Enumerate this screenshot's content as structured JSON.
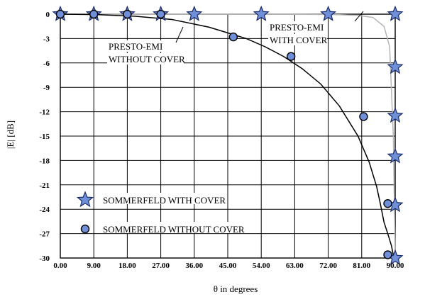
{
  "chart_data": {
    "type": "scatter",
    "title": "",
    "xlabel": "θ in degrees",
    "ylabel": "|E| [dB]",
    "xlim": [
      0,
      90
    ],
    "ylim": [
      -30,
      0
    ],
    "xticks": [
      0,
      9,
      18,
      27,
      36,
      45,
      54,
      63,
      72,
      81,
      90
    ],
    "xtick_labels": [
      "0.00",
      "9.00",
      "18.00",
      "27.00",
      "36.00",
      "45.00",
      "54.00",
      "63.00",
      "72.00",
      "81.00",
      "90.00"
    ],
    "yticks": [
      0,
      -3,
      -6,
      -9,
      -12,
      -15,
      -18,
      -21,
      -24,
      -27,
      -30
    ],
    "ytick_labels": [
      "0",
      "-3",
      "-6",
      "-9",
      "-12",
      "-15",
      "-18",
      "-21",
      "-24",
      "-27",
      "-30"
    ],
    "grid": true,
    "series": [
      {
        "name": "PRESTO-EMI WITH COVER",
        "kind": "line",
        "color": "#b5b5b5",
        "x": [
          0,
          20,
          40,
          60,
          70,
          75,
          80,
          84,
          87,
          88.5,
          89.5,
          90
        ],
        "y": [
          0,
          0,
          0,
          -0.01,
          -0.03,
          -0.06,
          -0.15,
          -0.4,
          -1.5,
          -4,
          -15,
          -30
        ]
      },
      {
        "name": "PRESTO-EMI WITHOUT COVER",
        "kind": "line",
        "color": "#000000",
        "x": [
          0,
          10,
          20,
          30,
          40,
          45,
          50,
          55,
          60,
          65,
          70,
          75,
          80,
          83,
          85,
          86,
          87,
          88,
          89,
          89.5
        ],
        "y": [
          0,
          -0.05,
          -0.25,
          -0.65,
          -1.6,
          -2.3,
          -3.0,
          -4.0,
          -5.2,
          -6.7,
          -8.6,
          -11.3,
          -15.0,
          -18.2,
          -21.2,
          -23.3,
          -25.6,
          -27.0,
          -28.5,
          -29.7
        ]
      },
      {
        "name": "SOMMERFELD WITH COVER",
        "kind": "marker",
        "marker": "star",
        "color": "#6f8fd8",
        "x": [
          0,
          9,
          18,
          27,
          36,
          54,
          72,
          90,
          90,
          90,
          90,
          90,
          90
        ],
        "y": [
          0,
          0,
          0,
          0,
          0,
          0,
          0,
          0,
          -6.5,
          -12.5,
          -17.5,
          -23.5,
          -30
        ]
      },
      {
        "name": "SOMMERFELD WITHOUT COVER",
        "kind": "marker",
        "marker": "circle",
        "color": "#6f8fd8",
        "x": [
          0,
          9,
          18,
          27,
          46.5,
          62,
          81.5,
          88,
          88
        ],
        "y": [
          0,
          0,
          0,
          0,
          -2.8,
          -5.2,
          -12.6,
          -23.3,
          -29.6
        ]
      }
    ],
    "annotations": [
      {
        "lines": [
          "PRESTO-EMI",
          "WITHOUT COVER"
        ]
      },
      {
        "lines": [
          "PRESTO-EMI",
          "WITH COVER"
        ]
      }
    ],
    "legend": {
      "placement": "lower-left",
      "entries": [
        {
          "label": "SOMMERFELD WITH COVER",
          "marker": "star"
        },
        {
          "label": "SOMMERFELD WITHOUT COVER",
          "marker": "circle"
        }
      ]
    }
  }
}
